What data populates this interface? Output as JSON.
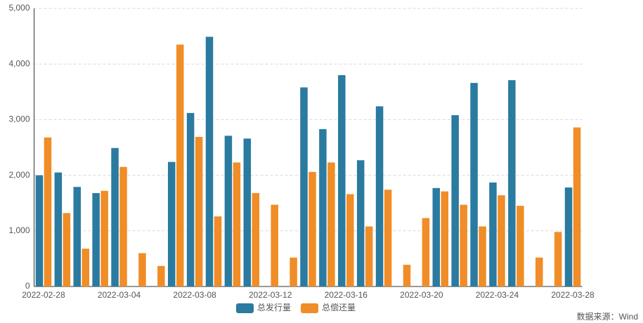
{
  "chart_data": {
    "type": "bar",
    "categories": [
      "2022-02-28",
      null,
      null,
      null,
      "2022-03-04",
      null,
      null,
      null,
      "2022-03-08",
      null,
      null,
      null,
      "2022-03-12",
      null,
      null,
      null,
      "2022-03-16",
      null,
      null,
      null,
      "2022-03-20",
      null,
      null,
      null,
      "2022-03-24",
      null,
      null,
      null,
      "2022-03-28"
    ],
    "series": [
      {
        "name": "总发行量",
        "color": "#2b7aa0",
        "values": [
          2000,
          2050,
          1790,
          1680,
          2490,
          null,
          null,
          2240,
          3120,
          4490,
          2710,
          2660,
          null,
          null,
          3580,
          2830,
          3800,
          2270,
          3240,
          null,
          null,
          1770,
          3080,
          3660,
          1870,
          3710,
          null,
          null,
          1780
        ]
      },
      {
        "name": "总偿还量",
        "color": "#f08d27",
        "values": [
          2680,
          1320,
          680,
          1720,
          2150,
          600,
          370,
          4350,
          2690,
          1260,
          2230,
          1680,
          1470,
          520,
          2060,
          2230,
          1660,
          1080,
          1740,
          390,
          1230,
          1710,
          1470,
          1080,
          1640,
          1450,
          520,
          980,
          2860
        ]
      }
    ],
    "ylim": [
      0,
      5000
    ],
    "yticks": [
      0,
      {
        "value": 1000,
        "label": "1,000"
      },
      {
        "value": 2000,
        "label": "2,000"
      },
      {
        "value": 3000,
        "label": "3,000"
      },
      {
        "value": 4000,
        "label": "4,000"
      },
      {
        "value": 5000,
        "label": "5,000"
      }
    ],
    "grid": true,
    "legend": "bottom",
    "source": "数据来源：Wind"
  }
}
